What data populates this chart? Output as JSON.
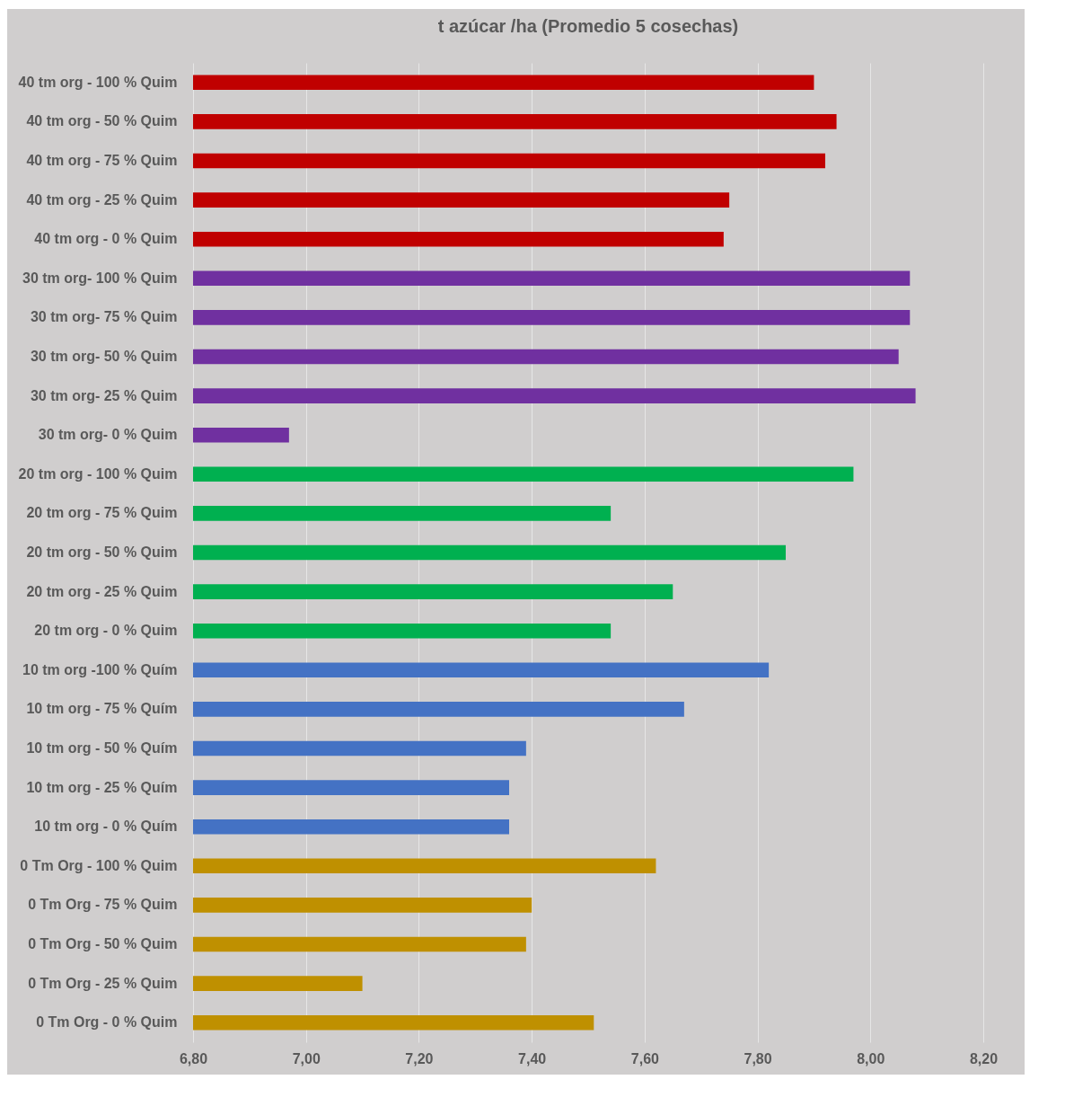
{
  "chart_data": {
    "type": "bar",
    "orientation": "horizontal",
    "title": "t azúcar /ha (Promedio 5 cosechas)",
    "categories": [
      "40 tm org - 100 % Quim",
      "40 tm org - 50 % Quim",
      "40 tm org - 75 % Quim",
      "40 tm org - 25 % Quim",
      "40 tm org - 0 % Quim",
      "30 tm org- 100 % Quim",
      "30 tm org- 75 % Quim",
      "30 tm org- 50 % Quim",
      "30 tm org- 25 % Quim",
      "30 tm org- 0 % Quim",
      "20 tm org - 100 % Quim",
      "20 tm org - 75 % Quim",
      "20 tm org - 50 % Quim",
      "20 tm org - 25 % Quim",
      "20 tm org - 0 % Quim",
      "10 tm org -100 % Quím",
      "10 tm org - 75 % Quím",
      "10 tm org - 50 % Quím",
      "10 tm org - 25 % Quím",
      "10 tm org - 0 % Quím",
      "0 Tm Org - 100 % Quim",
      "0 Tm Org - 75 % Quim",
      "0 Tm Org - 50 % Quim",
      "0 Tm Org - 25 % Quim",
      "0 Tm Org - 0 % Quim"
    ],
    "values": [
      7.9,
      7.94,
      7.92,
      7.75,
      7.74,
      8.07,
      8.07,
      8.05,
      8.08,
      6.97,
      7.97,
      7.54,
      7.85,
      7.65,
      7.54,
      7.82,
      7.67,
      7.39,
      7.36,
      7.36,
      7.62,
      7.4,
      7.39,
      7.1,
      7.51
    ],
    "colors": [
      "#c00000",
      "#c00000",
      "#c00000",
      "#c00000",
      "#c00000",
      "#7030a0",
      "#7030a0",
      "#7030a0",
      "#7030a0",
      "#7030a0",
      "#00b050",
      "#00b050",
      "#00b050",
      "#00b050",
      "#00b050",
      "#4472c4",
      "#4472c4",
      "#4472c4",
      "#4472c4",
      "#4472c4",
      "#bf9000",
      "#bf9000",
      "#bf9000",
      "#bf9000",
      "#bf9000"
    ],
    "xlim": [
      6.8,
      8.2
    ],
    "xticks": [
      {
        "value": 6.8,
        "label": "6,80"
      },
      {
        "value": 7.0,
        "label": "7,00"
      },
      {
        "value": 7.2,
        "label": "7,20"
      },
      {
        "value": 7.4,
        "label": "7,40"
      },
      {
        "value": 7.6,
        "label": "7,60"
      },
      {
        "value": 7.8,
        "label": "7,80"
      },
      {
        "value": 8.0,
        "label": "8,00"
      },
      {
        "value": 8.2,
        "label": "8,20"
      }
    ],
    "grid": "x"
  }
}
